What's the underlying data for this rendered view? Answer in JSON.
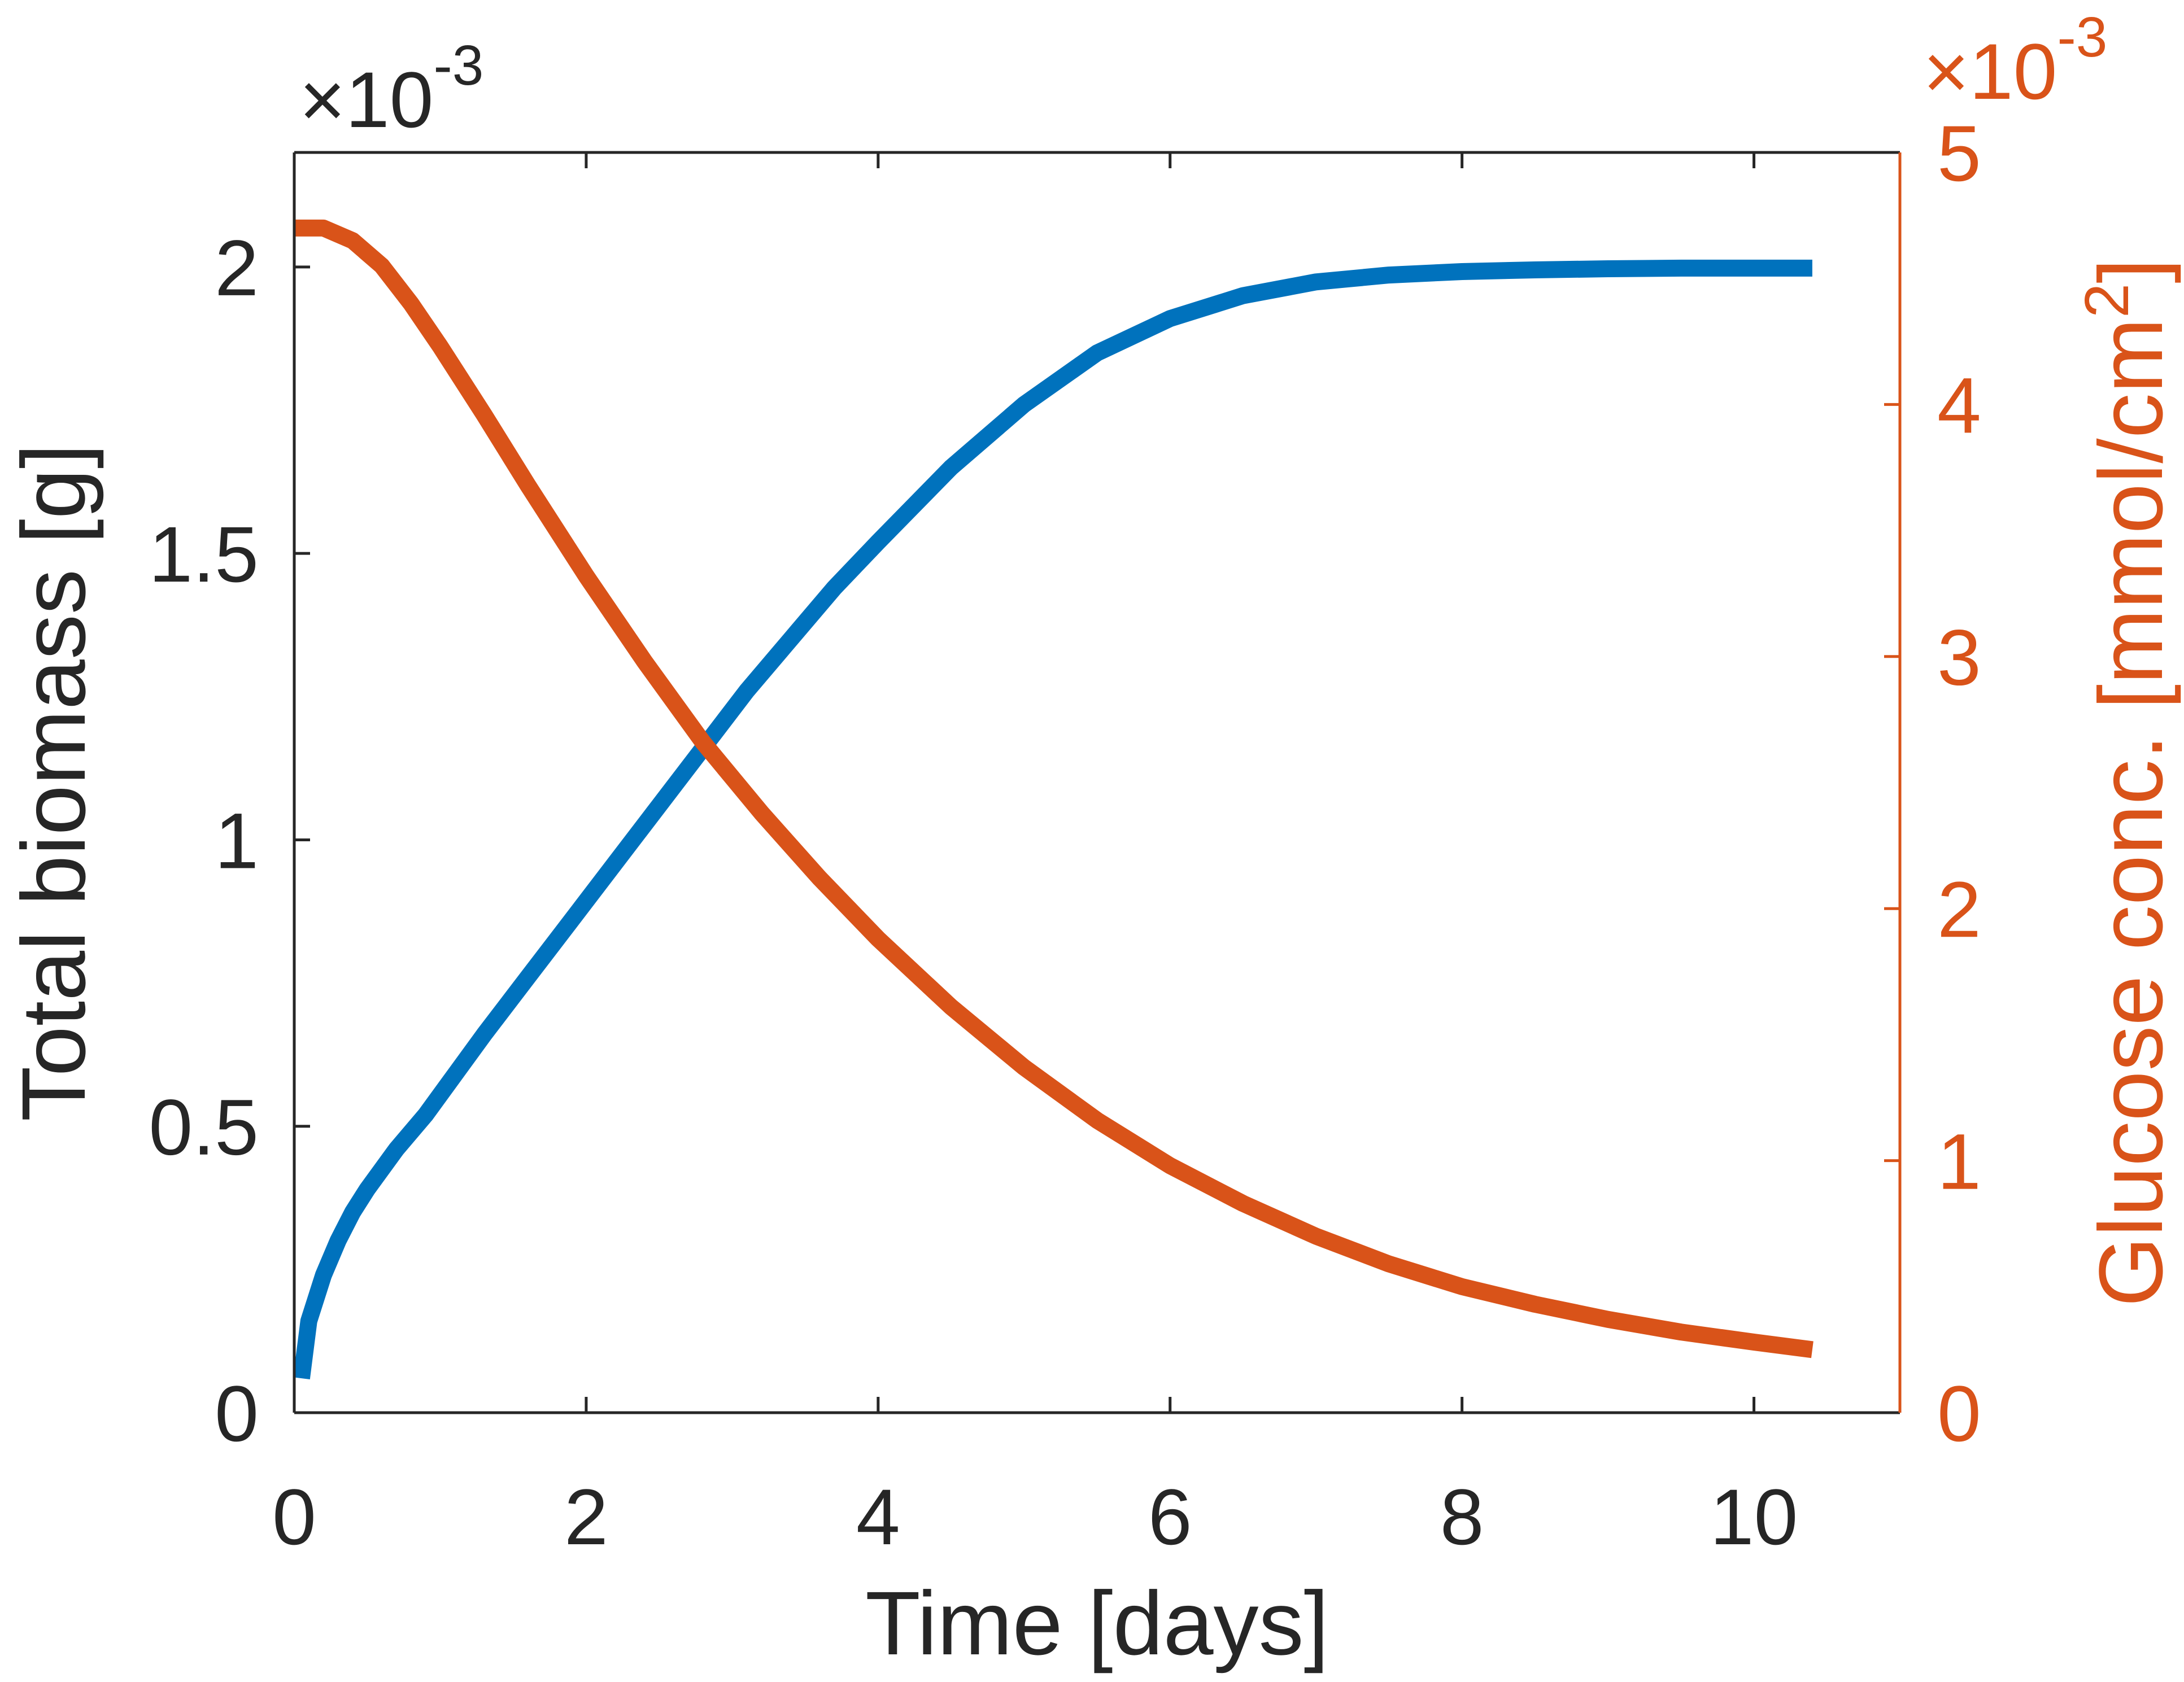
{
  "chart_data": {
    "type": "line",
    "xlabel": "Time [days]",
    "ylabel_left": "Total biomass [g]",
    "ylabel_right": "Glucose conc. [mmol/cm",
    "ylabel_right_sup": "2",
    "ylabel_right_close": "]",
    "multiplier_left": {
      "base": "×10",
      "exp": "-3"
    },
    "multiplier_right": {
      "base": "×10",
      "exp": "-3"
    },
    "xlim": [
      0,
      11
    ],
    "ylim_left": [
      0,
      2.2
    ],
    "ylim_right": [
      0,
      5
    ],
    "xticks": [
      0,
      2,
      4,
      6,
      8,
      10
    ],
    "xtick_labels": [
      "0",
      "2",
      "4",
      "6",
      "8",
      "10"
    ],
    "yticks_left": [
      0,
      0.5,
      1,
      1.5,
      2
    ],
    "ytick_labels_left": [
      "0",
      "0.5",
      "1",
      "1.5",
      "2"
    ],
    "yticks_right": [
      0,
      1,
      2,
      3,
      4,
      5
    ],
    "ytick_labels_right": [
      "0",
      "1",
      "2",
      "3",
      "4",
      "5"
    ],
    "colors": {
      "biomass": "#0072BD",
      "glucose": "#D95319",
      "axis": "#262626"
    },
    "series": [
      {
        "axis": "left",
        "color": "#0072BD",
        "x": [
          0.05,
          0.1,
          0.2,
          0.3,
          0.4,
          0.5,
          0.7,
          0.9,
          1.1,
          1.3,
          1.6,
          1.9,
          2.2,
          2.5,
          2.8,
          3.1,
          3.4,
          3.7,
          4.0,
          4.5,
          5.0,
          5.5,
          6.0,
          6.5,
          7.0,
          7.5,
          8.0,
          8.5,
          9.0,
          9.5,
          10.0,
          10.4
        ],
        "y": [
          0.06,
          0.16,
          0.24,
          0.3,
          0.35,
          0.39,
          0.46,
          0.52,
          0.59,
          0.66,
          0.76,
          0.86,
          0.96,
          1.06,
          1.16,
          1.26,
          1.35,
          1.44,
          1.52,
          1.65,
          1.76,
          1.85,
          1.91,
          1.95,
          1.974,
          1.986,
          1.992,
          1.995,
          1.997,
          1.998,
          1.998,
          1.998
        ]
      },
      {
        "axis": "right",
        "color": "#D95319",
        "x": [
          0,
          0.2,
          0.4,
          0.6,
          0.8,
          1.0,
          1.3,
          1.6,
          2.0,
          2.4,
          2.8,
          3.2,
          3.6,
          4.0,
          4.5,
          5.0,
          5.5,
          6.0,
          6.5,
          7.0,
          7.5,
          8.0,
          8.5,
          9.0,
          9.5,
          10.0,
          10.4
        ],
        "y": [
          4.7,
          4.7,
          4.65,
          4.55,
          4.4,
          4.23,
          3.96,
          3.68,
          3.32,
          2.98,
          2.66,
          2.38,
          2.12,
          1.88,
          1.61,
          1.37,
          1.16,
          0.98,
          0.83,
          0.7,
          0.59,
          0.5,
          0.43,
          0.37,
          0.32,
          0.28,
          0.25
        ]
      }
    ]
  }
}
